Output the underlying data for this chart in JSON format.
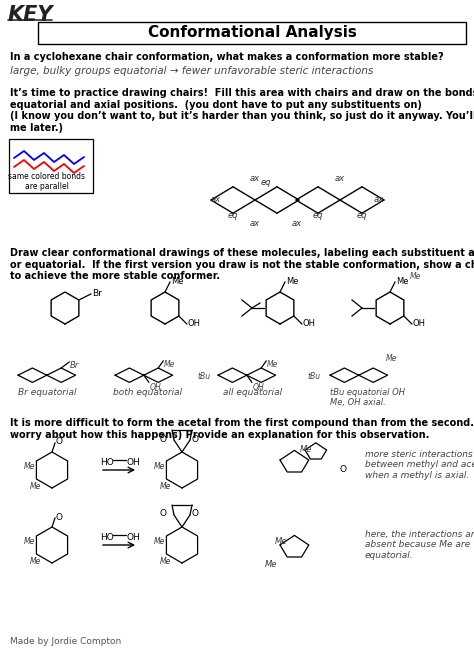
{
  "bg_color": "#ffffff",
  "title": "Conformational Analysis",
  "key_text": "KEY",
  "line1_q": "In a cyclohexane chair conformation, what makes a conformation more stable?",
  "line1_a": "large, bulky groups equatorial → fewer unfavorable steric interactions",
  "practice_text": "It’s time to practice drawing chairs!  Fill this area with chairs and draw on the bonds in\nequatorial and axial positions.  (you dont have to put any substituents on)\n(I know you don’t want to, but it’s harder than you think, so just do it anyway. You’ll thank\nme later.)",
  "legend_text": "same colored bonds\nare parallel",
  "draw_section": "Draw clear conformational drawings of these molecules, labeling each substituent as axial\nor equatorial.  If the first version you draw is not the stable conformation, show a chair flip\nto achieve the more stable conformer.",
  "acetal_text": "It is more difficult to form the acetal from the first compound than from the second. (don’t\nworry about how this happens) Provide an explanation for this observation.",
  "answer1": "more steric interactions\nbetween methyl and acetal\nwhen a methyl is axial.",
  "answer2": "here, the interactions are\nabsent because Me are\nequatorial.",
  "label_Br_eq": "Br equatorial",
  "label_both_eq": "both equatorial",
  "label_all_eq": "all equatorial",
  "label_tBu_eq": "tBu equatorial OH\nMe, OH axial.",
  "made_by": "Made by Jordie Compton"
}
